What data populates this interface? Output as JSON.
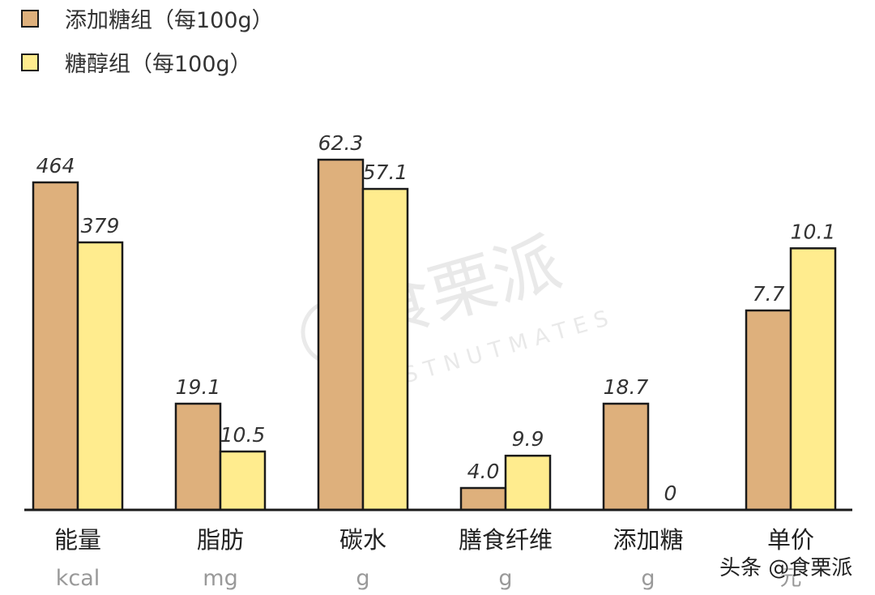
{
  "chart_data": {
    "type": "bar",
    "categories": [
      "能量",
      "脂肪",
      "碳水",
      "膳食纤维",
      "添加糖",
      "单价"
    ],
    "units": [
      "kcal",
      "mg",
      "g",
      "g",
      "g",
      "元"
    ],
    "series": [
      {
        "name": "添加糖组（每100g）",
        "color": "#DEB07C",
        "values": [
          464,
          19.1,
          62.3,
          4.0,
          18.7,
          7.7
        ],
        "labels": [
          "464",
          "19.1",
          "62.3",
          "4.0",
          "18.7",
          "7.7"
        ]
      },
      {
        "name": "糖醇组（每100g）",
        "color": "#FFEC8E",
        "values": [
          379,
          10.5,
          57.1,
          9.9,
          0,
          10.1
        ],
        "labels": [
          "379",
          "10.5",
          "57.1",
          "9.9",
          "0",
          "10.1"
        ]
      }
    ],
    "legend_position": "top-left",
    "grid": false
  },
  "watermark": {
    "cn": "食栗派",
    "en": "CHESTNUTMATES"
  },
  "credit": "头条 @食栗派"
}
